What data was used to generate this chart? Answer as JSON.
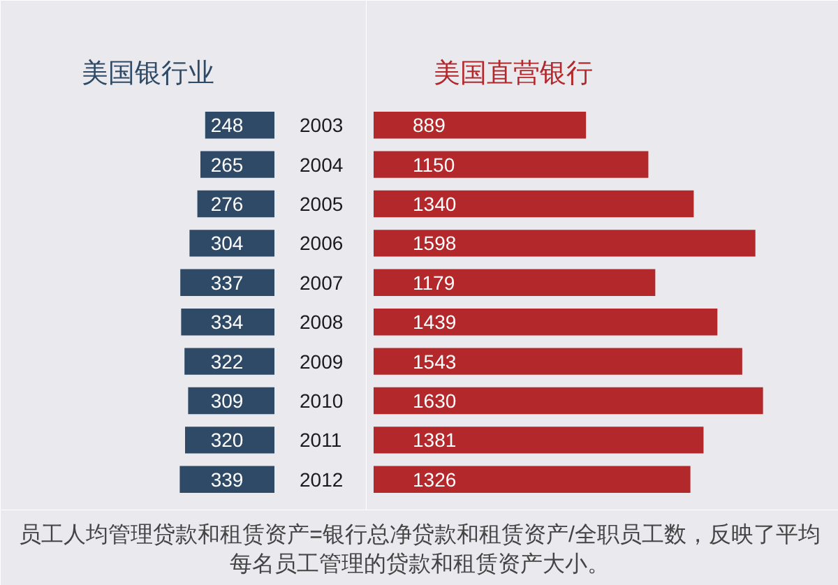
{
  "chart_data": [
    {
      "type": "bar",
      "orientation": "horizontal",
      "title": "美国银行业",
      "categories": [
        "2003",
        "2004",
        "2005",
        "2006",
        "2007",
        "2008",
        "2009",
        "2010",
        "2011",
        "2012"
      ],
      "values": [
        248,
        265,
        276,
        304,
        337,
        334,
        322,
        309,
        320,
        339
      ],
      "color": "#2f4a66",
      "xlim": [
        900,
        0
      ],
      "tick_labels": "y",
      "data_labels": true,
      "annotations": [
        "员工人均管理贷款和租赁资产=银行总净贷款和租赁资产/全职员工数，反映了平均每名员工管理的贷款和租赁资产大小。"
      ]
    },
    {
      "type": "bar",
      "orientation": "horizontal",
      "title": "美国直营银行",
      "categories": [
        "2003",
        "2004",
        "2005",
        "2006",
        "2007",
        "2008",
        "2009",
        "2010",
        "2011",
        "2012"
      ],
      "values": [
        889,
        1150,
        1340,
        1598,
        1179,
        1439,
        1543,
        1630,
        1381,
        1326
      ],
      "color": "#b2282b",
      "xlim": [
        0,
        1900
      ],
      "tick_labels": false,
      "data_labels": true
    }
  ]
}
